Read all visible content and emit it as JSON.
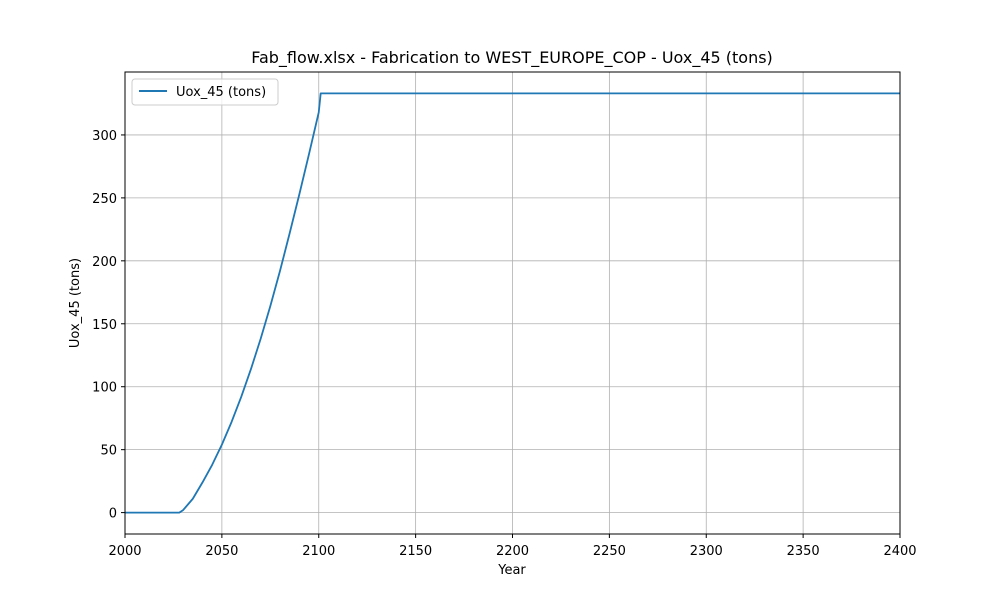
{
  "chart_data": {
    "type": "line",
    "title": "Fab_flow.xlsx - Fabrication to WEST_EUROPE_COP - Uox_45 (tons)",
    "xlabel": "Year",
    "ylabel": "Uox_45 (tons)",
    "xlim": [
      2000,
      2400
    ],
    "ylim": [
      -17,
      350
    ],
    "xticks": [
      2000,
      2050,
      2100,
      2150,
      2200,
      2250,
      2300,
      2350,
      2400
    ],
    "yticks": [
      0,
      50,
      100,
      150,
      200,
      250,
      300
    ],
    "grid": true,
    "legend_position": "upper-left",
    "series": [
      {
        "name": "Uox_45 (tons)",
        "color": "#1f77b4",
        "x": [
          2000,
          2028,
          2030,
          2035,
          2040,
          2045,
          2050,
          2055,
          2060,
          2065,
          2070,
          2075,
          2080,
          2085,
          2090,
          2095,
          2100,
          2101,
          2150,
          2200,
          2250,
          2300,
          2350,
          2400
        ],
        "y": [
          0,
          0,
          2,
          11,
          24,
          38,
          54,
          72,
          92,
          114,
          138,
          164,
          192,
          222,
          253,
          285,
          318,
          333,
          333,
          333,
          333,
          333,
          333,
          333
        ]
      }
    ]
  }
}
